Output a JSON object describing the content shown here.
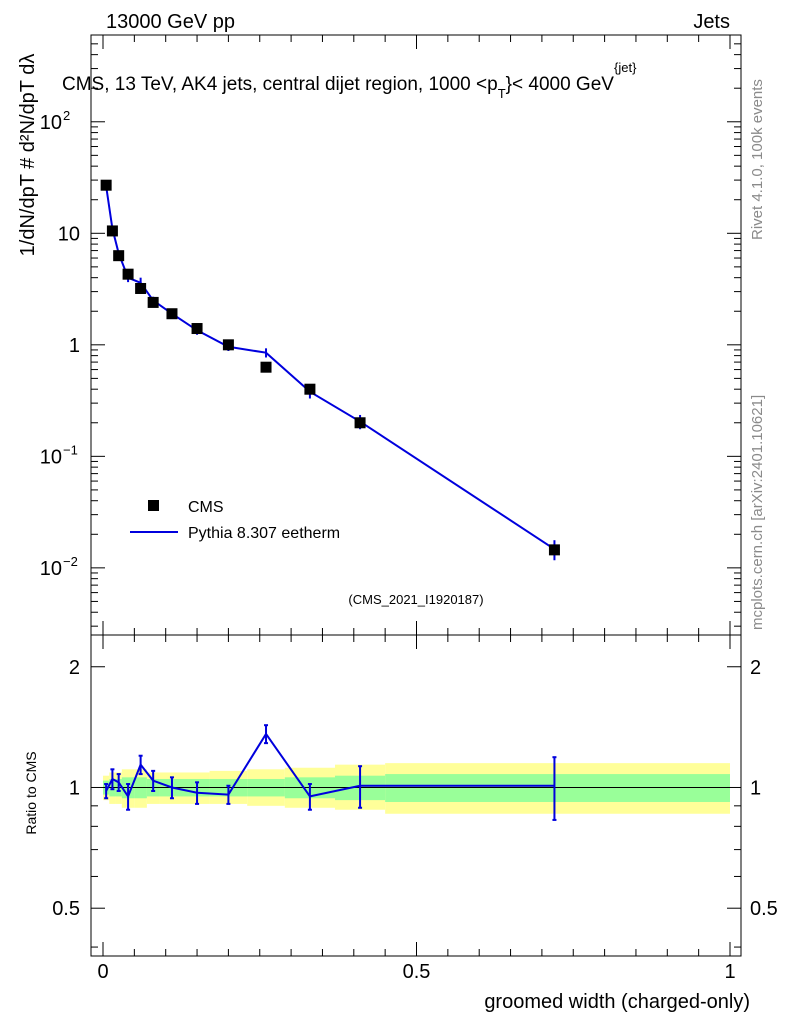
{
  "header": {
    "left": "13000 GeV pp",
    "right": "Jets"
  },
  "side_labels": {
    "rivet": "Rivet 4.1.0,  100k events",
    "mcplots": "mcplots.cern.ch [arXiv:2401.10621]"
  },
  "colors": {
    "mc": "#0000dd",
    "band_inner": "#99ff99",
    "band_outer": "#ffff99",
    "data": "#000000",
    "watermark": "#a0a0a0"
  },
  "chart_data": [
    {
      "type": "line",
      "title_pre": "CMS, 13 TeV, AK4 jets, central dijet region, 1000 <p",
      "title_sup": "{jet}",
      "title_sub": "T",
      "title_post": "}< 4000 GeV",
      "ylabel": "1/dN/dpT # d²N/dpT dλ",
      "yscale": "log",
      "xlim": [
        0,
        1
      ],
      "ylim": [
        0.0025,
        600
      ],
      "y_ticks": [
        {
          "v": 0.01,
          "base": "10",
          "exp": "−2"
        },
        {
          "v": 0.1,
          "base": "10",
          "exp": "−1"
        },
        {
          "v": 1,
          "base": "1",
          "exp": ""
        },
        {
          "v": 10,
          "base": "10",
          "exp": ""
        },
        {
          "v": 100,
          "base": "10",
          "exp": "2"
        }
      ],
      "watermark": "(CMS_2021_I1920187)",
      "legend": [
        {
          "name": "CMS",
          "kind": "marker"
        },
        {
          "name": "Pythia 8.307 eetherm",
          "kind": "line"
        }
      ],
      "data_series": {
        "name": "CMS",
        "x": [
          0.005,
          0.015,
          0.025,
          0.04,
          0.06,
          0.08,
          0.11,
          0.15,
          0.2,
          0.26,
          0.33,
          0.41,
          0.72
        ],
        "values": [
          27.0,
          10.5,
          6.3,
          4.3,
          3.2,
          2.4,
          1.9,
          1.4,
          1.0,
          0.63,
          0.4,
          0.2,
          0.0145
        ]
      },
      "mc_series": {
        "name": "Pythia 8.307 eetherm",
        "x": [
          0.005,
          0.015,
          0.025,
          0.04,
          0.06,
          0.08,
          0.11,
          0.15,
          0.2,
          0.26,
          0.33,
          0.41,
          0.72
        ],
        "values": [
          26.5,
          11.0,
          6.6,
          4.0,
          3.6,
          2.5,
          1.9,
          1.35,
          0.96,
          0.85,
          0.38,
          0.205,
          0.0147
        ],
        "err_lo": [
          1.2,
          0.6,
          0.4,
          0.35,
          0.4,
          0.2,
          0.15,
          0.12,
          0.08,
          0.08,
          0.05,
          0.03,
          0.003
        ],
        "err_hi": [
          1.2,
          0.6,
          0.4,
          0.35,
          0.4,
          0.2,
          0.15,
          0.12,
          0.08,
          0.08,
          0.05,
          0.03,
          0.003
        ]
      }
    },
    {
      "type": "line",
      "title": "",
      "ylabel": "Ratio to CMS",
      "xlabel": "groomed width (charged-only)",
      "xlim": [
        0,
        1
      ],
      "ylim": [
        0.38,
        2.4
      ],
      "yscale": "log",
      "y_ticks": [
        {
          "v": 0.5,
          "label": "0.5"
        },
        {
          "v": 1,
          "label": "1"
        },
        {
          "v": 2,
          "label": "2"
        }
      ],
      "x_ticks": [
        {
          "v": 0,
          "label": "0"
        },
        {
          "v": 0.5,
          "label": "0.5"
        },
        {
          "v": 1,
          "label": "1"
        }
      ],
      "bins": [
        0,
        0.01,
        0.02,
        0.03,
        0.05,
        0.07,
        0.09,
        0.13,
        0.17,
        0.23,
        0.29,
        0.37,
        0.45,
        1.0
      ],
      "band_inner_lo": [
        0.96,
        0.95,
        0.95,
        0.94,
        0.94,
        0.95,
        0.95,
        0.95,
        0.95,
        0.95,
        0.94,
        0.93,
        0.92
      ],
      "band_inner_hi": [
        1.04,
        1.05,
        1.05,
        1.06,
        1.06,
        1.05,
        1.05,
        1.05,
        1.05,
        1.05,
        1.06,
        1.07,
        1.08
      ],
      "band_outer_lo": [
        0.93,
        0.91,
        0.91,
        0.89,
        0.89,
        0.91,
        0.91,
        0.91,
        0.91,
        0.9,
        0.89,
        0.88,
        0.86
      ],
      "band_outer_hi": [
        1.07,
        1.09,
        1.09,
        1.11,
        1.11,
        1.09,
        1.09,
        1.09,
        1.1,
        1.11,
        1.12,
        1.14,
        1.15
      ],
      "series": [
        {
          "name": "Pythia 8.307 eetherm",
          "x": [
            0.005,
            0.015,
            0.025,
            0.04,
            0.06,
            0.08,
            0.11,
            0.15,
            0.2,
            0.26,
            0.33,
            0.41,
            0.72
          ],
          "values": [
            0.98,
            1.05,
            1.03,
            0.95,
            1.14,
            1.04,
            1.0,
            0.97,
            0.96,
            1.36,
            0.95,
            1.01,
            1.01
          ],
          "err": [
            0.04,
            0.06,
            0.05,
            0.07,
            0.06,
            0.06,
            0.06,
            0.06,
            0.05,
            0.07,
            0.07,
            0.12,
            0.18
          ]
        }
      ]
    }
  ]
}
